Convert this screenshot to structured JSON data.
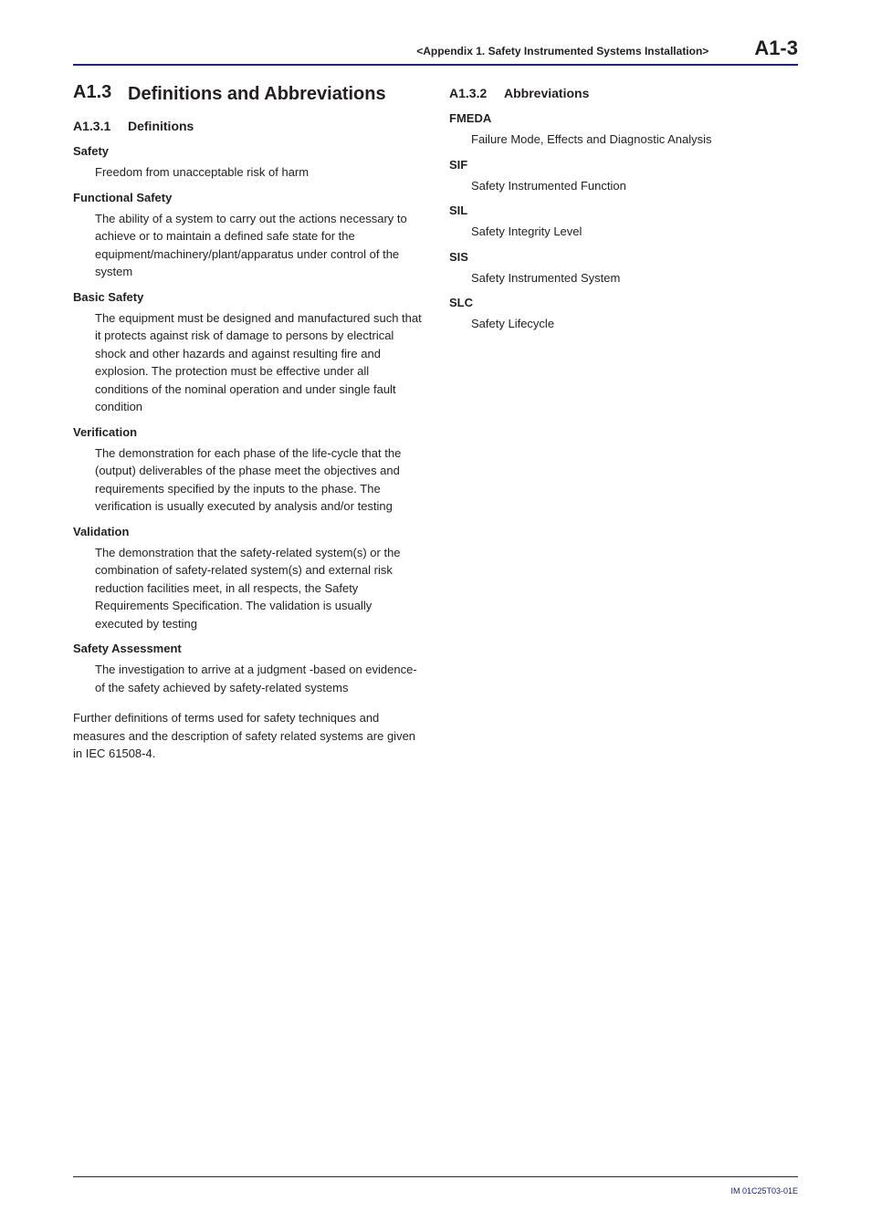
{
  "header": {
    "chapter": "<Appendix 1.  Safety Instrumented Systems Installation>",
    "page": "A1-3"
  },
  "left": {
    "h1": {
      "num": "A1.3",
      "text": "Definitions and Abbreviations"
    },
    "h2": {
      "num": "A1.3.1",
      "text": "Definitions"
    },
    "items": [
      {
        "term": "Safety",
        "def": "Freedom from unacceptable risk of harm"
      },
      {
        "term": "Functional Safety",
        "def": "The ability of a system to carry out the actions necessary to achieve or to maintain a defined safe state for the equipment/machinery/plant/apparatus under control of the system"
      },
      {
        "term": "Basic Safety",
        "def": "The equipment must be designed and manufactured such that it protects against risk of damage to persons by electrical shock and other hazards and against resulting fire and explosion. The protection must be effective under all conditions of the nominal operation and under single fault condition"
      },
      {
        "term": "Verification",
        "def": "The demonstration for each phase of the life-cycle that the (output) deliverables of the phase meet the objectives and requirements specified by the inputs to the phase. The verification is usually executed by analysis and/or testing"
      },
      {
        "term": "Validation",
        "def": "The demonstration that the safety-related system(s) or the combination of safety-related system(s) and external risk reduction facilities meet, in all respects, the Safety Requirements Specification. The validation is usually executed by testing"
      },
      {
        "term": "Safety Assessment",
        "def": "The investigation to arrive at a judgment -based on evidence- of the safety achieved by safety-related systems"
      }
    ],
    "footnote": "Further definitions of terms used for safety techniques and measures and the description of safety related systems are given in IEC 61508-4."
  },
  "right": {
    "h2": {
      "num": "A1.3.2",
      "text": "Abbreviations"
    },
    "items": [
      {
        "term": "FMEDA",
        "def": "Failure Mode, Effects and Diagnostic Analysis"
      },
      {
        "term": "SIF",
        "def": "Safety Instrumented Function"
      },
      {
        "term": "SIL",
        "def": "Safety Integrity Level"
      },
      {
        "term": "SIS",
        "def": "Safety Instrumented System"
      },
      {
        "term": "SLC",
        "def": "Safety Lifecycle"
      }
    ]
  },
  "footer": {
    "doc": "IM 01C25T03-01E"
  },
  "style": {
    "rule_color": "#1a237e",
    "text_color": "#231f20",
    "body_fontsize": 13,
    "h1_fontsize": 20,
    "h2_fontsize": 14,
    "footer_fontsize": 9
  }
}
